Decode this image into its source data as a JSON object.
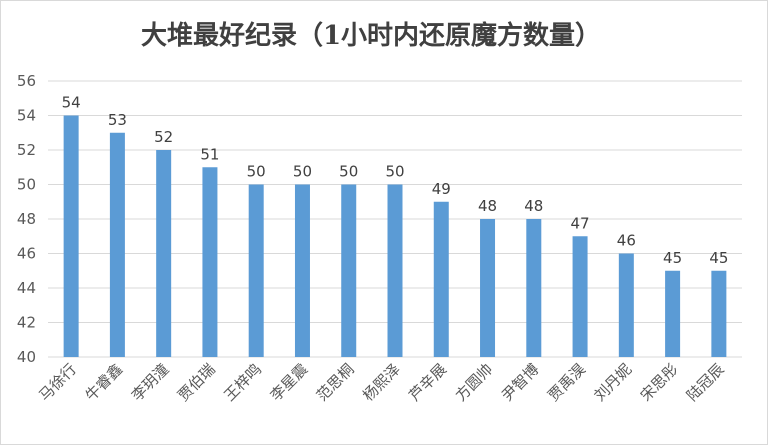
{
  "chart_data": {
    "type": "bar",
    "title": "大堆最好纪录（1小时内还原魔方数量）",
    "xlabel": "",
    "ylabel": "",
    "ylim": [
      40,
      56
    ],
    "yticks": [
      40,
      42,
      44,
      46,
      48,
      50,
      52,
      54,
      56
    ],
    "grid": true,
    "legend": "none",
    "bar_color": "#5b9bd5",
    "categories": [
      "马徐行",
      "牛睿鑫",
      "李玥潼",
      "贾伯瑞",
      "王梓鸣",
      "李星震",
      "范思桐",
      "杨熙泽",
      "芦辛展",
      "方圆帅",
      "尹智博",
      "贾禹淏",
      "刘丹妮",
      "宋思彤",
      "陆冠辰"
    ],
    "values": [
      54,
      53,
      52,
      51,
      50,
      50,
      50,
      50,
      49,
      48,
      48,
      47,
      46,
      45,
      45
    ]
  }
}
